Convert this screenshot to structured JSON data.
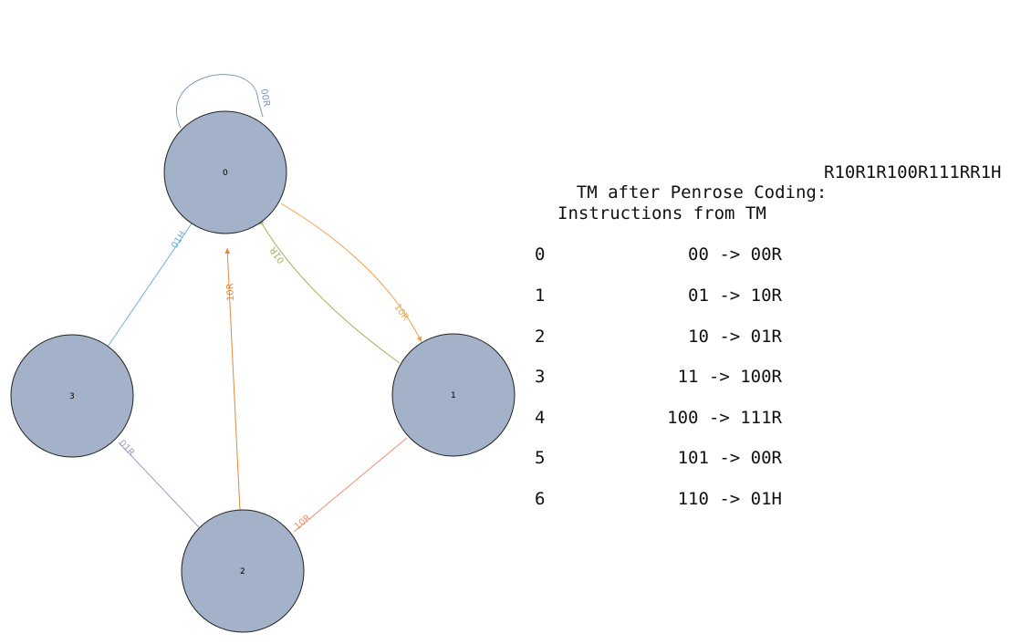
{
  "colors": {
    "node_fill": "#a3b1c9",
    "node_stroke": "#222222"
  },
  "graph": {
    "nodes": [
      {
        "id": "0",
        "label": "0"
      },
      {
        "id": "1",
        "label": "1"
      },
      {
        "id": "2",
        "label": "2"
      },
      {
        "id": "3",
        "label": "3"
      }
    ],
    "edges": [
      {
        "from": "0",
        "to": "0",
        "label": "00R",
        "color": "#7b9bc0"
      },
      {
        "from": "0",
        "to": "1",
        "label": "10R",
        "color": "#f0a24a"
      },
      {
        "from": "1",
        "to": "0",
        "label": "01R",
        "color": "#9bb55a"
      },
      {
        "from": "1",
        "to": "2",
        "label": "10R",
        "color": "#ee8e6e"
      },
      {
        "from": "2",
        "to": "0",
        "label": "10R",
        "color": "#e08a3c"
      },
      {
        "from": "2",
        "to": "3",
        "label": "01R",
        "color": "#9a9cc8"
      },
      {
        "from": "3",
        "to": "0",
        "label": "01H",
        "color": "#6fb0d6"
      }
    ]
  },
  "panel": {
    "coding_label": "TM after Penrose Coding:",
    "coding_value": "R10R1R100R111RR1H",
    "instructions_title": "Instructions from TM",
    "instructions": [
      {
        "index": "0",
        "rule": "00 -> 00R"
      },
      {
        "index": "1",
        "rule": "01 -> 10R"
      },
      {
        "index": "2",
        "rule": "10 -> 01R"
      },
      {
        "index": "3",
        "rule": "11 -> 100R"
      },
      {
        "index": "4",
        "rule": "100 -> 111R"
      },
      {
        "index": "5",
        "rule": "101 -> 00R"
      },
      {
        "index": "6",
        "rule": "110 -> 01H"
      }
    ]
  }
}
